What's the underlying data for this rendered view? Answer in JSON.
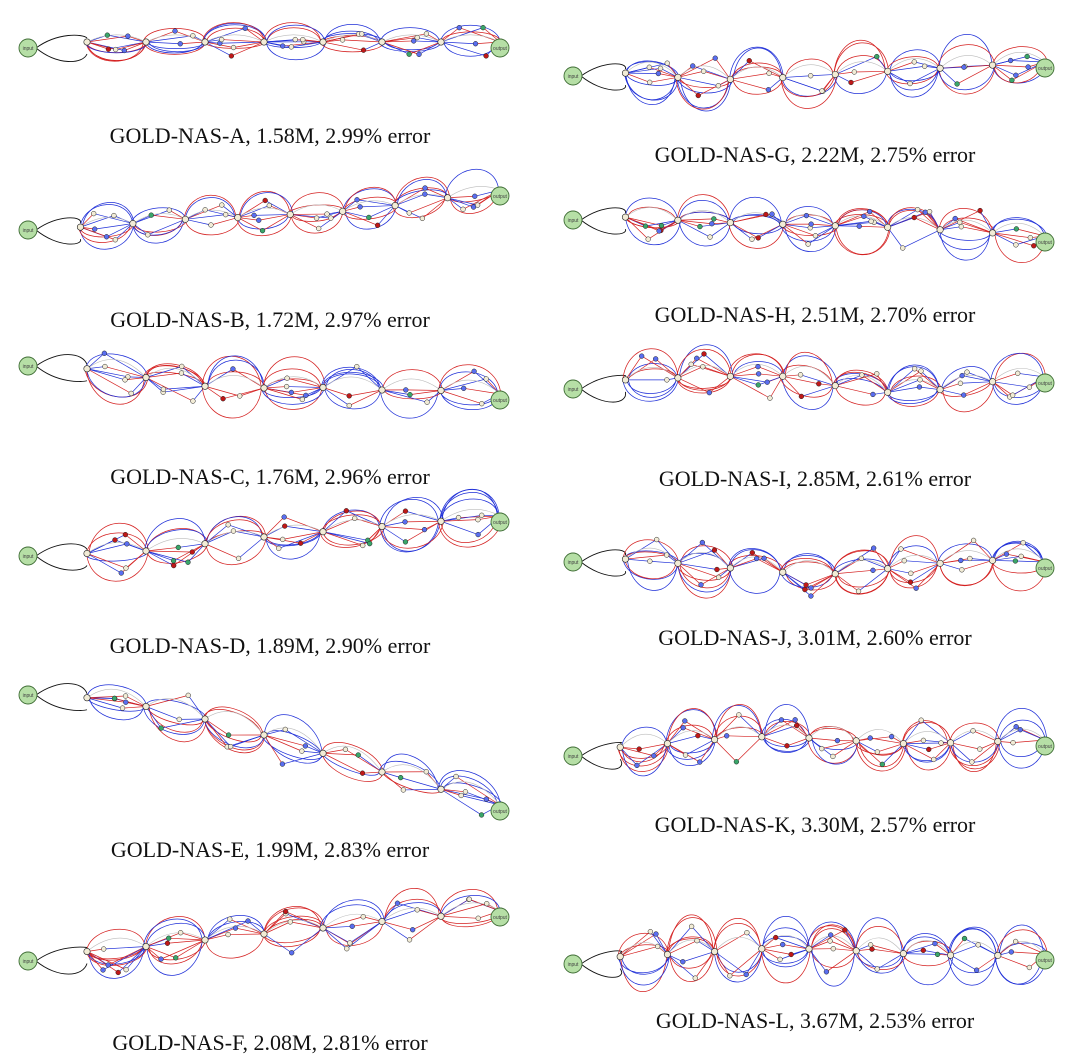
{
  "figure": {
    "panels": [
      {
        "id": "A",
        "caption": "GOLD-NAS-A, 1.58M, 2.99% error",
        "input_label": "input",
        "output_label": "output"
      },
      {
        "id": "B",
        "caption": "GOLD-NAS-B, 1.72M, 2.97% error",
        "input_label": "input",
        "output_label": "output"
      },
      {
        "id": "C",
        "caption": "GOLD-NAS-C, 1.76M, 2.96% error",
        "input_label": "input",
        "output_label": "output"
      },
      {
        "id": "D",
        "caption": "GOLD-NAS-D, 1.89M, 2.90% error",
        "input_label": "input",
        "output_label": "output"
      },
      {
        "id": "E",
        "caption": "GOLD-NAS-E, 1.99M, 2.83% error",
        "input_label": "input",
        "output_label": "output"
      },
      {
        "id": "F",
        "caption": "GOLD-NAS-F, 2.08M, 2.81% error",
        "input_label": "input",
        "output_label": "output"
      },
      {
        "id": "G",
        "caption": "GOLD-NAS-G, 2.22M, 2.75% error",
        "input_label": "input",
        "output_label": "output"
      },
      {
        "id": "H",
        "caption": "GOLD-NAS-H, 2.51M, 2.70% error",
        "input_label": "input",
        "output_label": "output"
      },
      {
        "id": "I",
        "caption": "GOLD-NAS-I, 2.85M, 2.61% error",
        "input_label": "input",
        "output_label": "output"
      },
      {
        "id": "J",
        "caption": "GOLD-NAS-J, 3.01M, 2.60% error",
        "input_label": "input",
        "output_label": "output"
      },
      {
        "id": "K",
        "caption": "GOLD-NAS-K, 3.30M, 2.57% error",
        "input_label": "input",
        "output_label": "output"
      },
      {
        "id": "L",
        "caption": "GOLD-NAS-L, 3.67M, 2.53% error",
        "input_label": "input",
        "output_label": "output"
      }
    ],
    "colors": {
      "red_edge": "#d42020",
      "blue_edge": "#2030d8",
      "black_edge": "#111111",
      "gray_edge": "#bbbbbb",
      "io_fill": "#b6dfa6",
      "io_stroke": "#3f6d35",
      "node_fill": "#f2ecd6",
      "node_blue": "#5a6ef0",
      "node_red": "#c01818",
      "node_green": "#3aa66a"
    }
  }
}
